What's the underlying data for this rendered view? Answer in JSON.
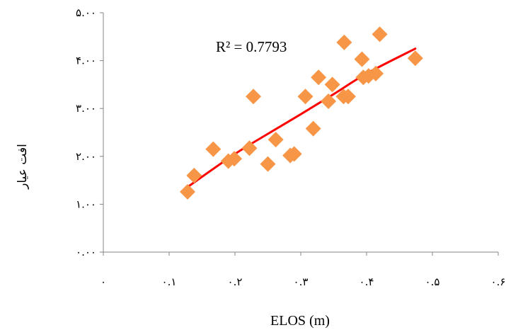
{
  "chart_data": {
    "type": "scatter",
    "xlabel": "ELOS (m)",
    "ylabel": "افت عیار",
    "xlim": [
      0,
      0.6
    ],
    "ylim": [
      0,
      5
    ],
    "x_ticks": [
      0,
      0.1,
      0.2,
      0.3,
      0.4,
      0.5,
      0.6
    ],
    "x_tick_labels": [
      "۰",
      "۰.۱",
      "۰.۲",
      "۰.۳",
      "۰.۴",
      "۰.۵",
      "۰.۶"
    ],
    "y_ticks": [
      0,
      1,
      2,
      3,
      4,
      5
    ],
    "y_tick_labels": [
      "۰.۰۰",
      "۱.۰۰",
      "۲.۰۰",
      "۳.۰۰",
      "۴.۰۰",
      "۵.۰۰"
    ],
    "annotation": "R² = 0.7793",
    "grid": false,
    "colors": {
      "marker": "#F79646",
      "trendline": "#FF0000",
      "axis": "#868686"
    },
    "series": [
      {
        "marker": "diamond",
        "points": [
          {
            "x": 0.128,
            "y": 1.26
          },
          {
            "x": 0.138,
            "y": 1.6
          },
          {
            "x": 0.167,
            "y": 2.15
          },
          {
            "x": 0.19,
            "y": 1.9
          },
          {
            "x": 0.199,
            "y": 1.95
          },
          {
            "x": 0.222,
            "y": 2.17
          },
          {
            "x": 0.228,
            "y": 3.25
          },
          {
            "x": 0.25,
            "y": 1.84
          },
          {
            "x": 0.262,
            "y": 2.35
          },
          {
            "x": 0.284,
            "y": 2.02
          },
          {
            "x": 0.29,
            "y": 2.05
          },
          {
            "x": 0.307,
            "y": 3.25
          },
          {
            "x": 0.319,
            "y": 2.58
          },
          {
            "x": 0.327,
            "y": 3.65
          },
          {
            "x": 0.342,
            "y": 3.15
          },
          {
            "x": 0.348,
            "y": 3.5
          },
          {
            "x": 0.365,
            "y": 3.25
          },
          {
            "x": 0.372,
            "y": 3.25
          },
          {
            "x": 0.366,
            "y": 4.38
          },
          {
            "x": 0.393,
            "y": 4.03
          },
          {
            "x": 0.395,
            "y": 3.65
          },
          {
            "x": 0.403,
            "y": 3.68
          },
          {
            "x": 0.414,
            "y": 3.73
          },
          {
            "x": 0.42,
            "y": 4.55
          },
          {
            "x": 0.474,
            "y": 4.05
          }
        ]
      }
    ],
    "trendline": {
      "type": "curve",
      "points": [
        {
          "x": 0.128,
          "y": 1.36
        },
        {
          "x": 0.2,
          "y": 2.05
        },
        {
          "x": 0.25,
          "y": 2.47
        },
        {
          "x": 0.3,
          "y": 2.88
        },
        {
          "x": 0.35,
          "y": 3.3
        },
        {
          "x": 0.4,
          "y": 3.73
        },
        {
          "x": 0.474,
          "y": 4.25
        }
      ]
    }
  }
}
